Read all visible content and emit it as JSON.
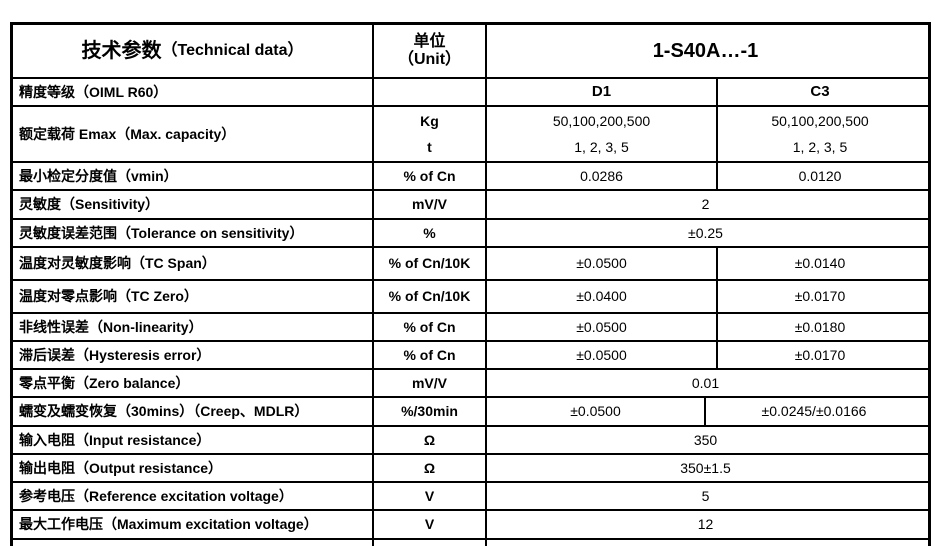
{
  "table": {
    "header": {
      "param_cn": "技术参数",
      "param_en": "（Technical data）",
      "unit_line1": "单位",
      "unit_line2": "（Unit）",
      "model": "1-S40A…-1"
    },
    "rows": [
      {
        "label": "精度等级（OIML R60）",
        "unit": "",
        "d1": "D1",
        "c3": "C3"
      },
      {
        "label": "额定载荷 Emax（Max. capacity）",
        "unit_line1": "Kg",
        "unit_line2": "t",
        "d1_line1": "50,100,200,500",
        "d1_line2": "1, 2, 3, 5",
        "c3_line1": "50,100,200,500",
        "c3_line2": "1, 2, 3, 5"
      },
      {
        "label": "最小检定分度值（vmin）",
        "unit": "% of Cn",
        "d1": "0.0286",
        "c3": "0.0120"
      },
      {
        "label": "灵敏度（Sensitivity）",
        "unit": "mV/V",
        "value": "2"
      },
      {
        "label": "灵敏度误差范围（Tolerance on sensitivity）",
        "unit": "%",
        "value": "±0.25"
      },
      {
        "label": "温度对灵敏度影响（TC Span）",
        "unit": "% of Cn/10K",
        "d1": "±0.0500",
        "c3": "±0.0140"
      },
      {
        "label": "温度对零点影响（TC Zero）",
        "unit": "% of Cn/10K",
        "d1": "±0.0400",
        "c3": "±0.0170"
      },
      {
        "label": "非线性误差（Non-linearity）",
        "unit": "% of Cn",
        "d1": "±0.0500",
        "c3": "±0.0180"
      },
      {
        "label": "滞后误差（Hysteresis error）",
        "unit": "% of Cn",
        "d1": "±0.0500",
        "c3": "±0.0170"
      },
      {
        "label": "零点平衡（Zero balance）",
        "unit": "mV/V",
        "value": "0.01"
      },
      {
        "label": "蠕变及蠕变恢复（30mins）（Creep、MDLR）",
        "unit": "%/30min",
        "d1": "±0.0500",
        "c3": "±0.0245/±0.0166"
      },
      {
        "label": "输入电阻（Input resistance）",
        "unit": "Ω",
        "value": "350"
      },
      {
        "label": "输出电阻（Output resistance）",
        "unit": "Ω",
        "value": "350±1.5"
      },
      {
        "label": "参考电压（Reference excitation voltage）",
        "unit": "V",
        "value": "5"
      },
      {
        "label": "最大工作电压（Maximum excitation voltage）",
        "unit": "V",
        "value": "12"
      }
    ],
    "colors": {
      "border": "#000000",
      "text": "#000000",
      "background": "#ffffff"
    }
  }
}
